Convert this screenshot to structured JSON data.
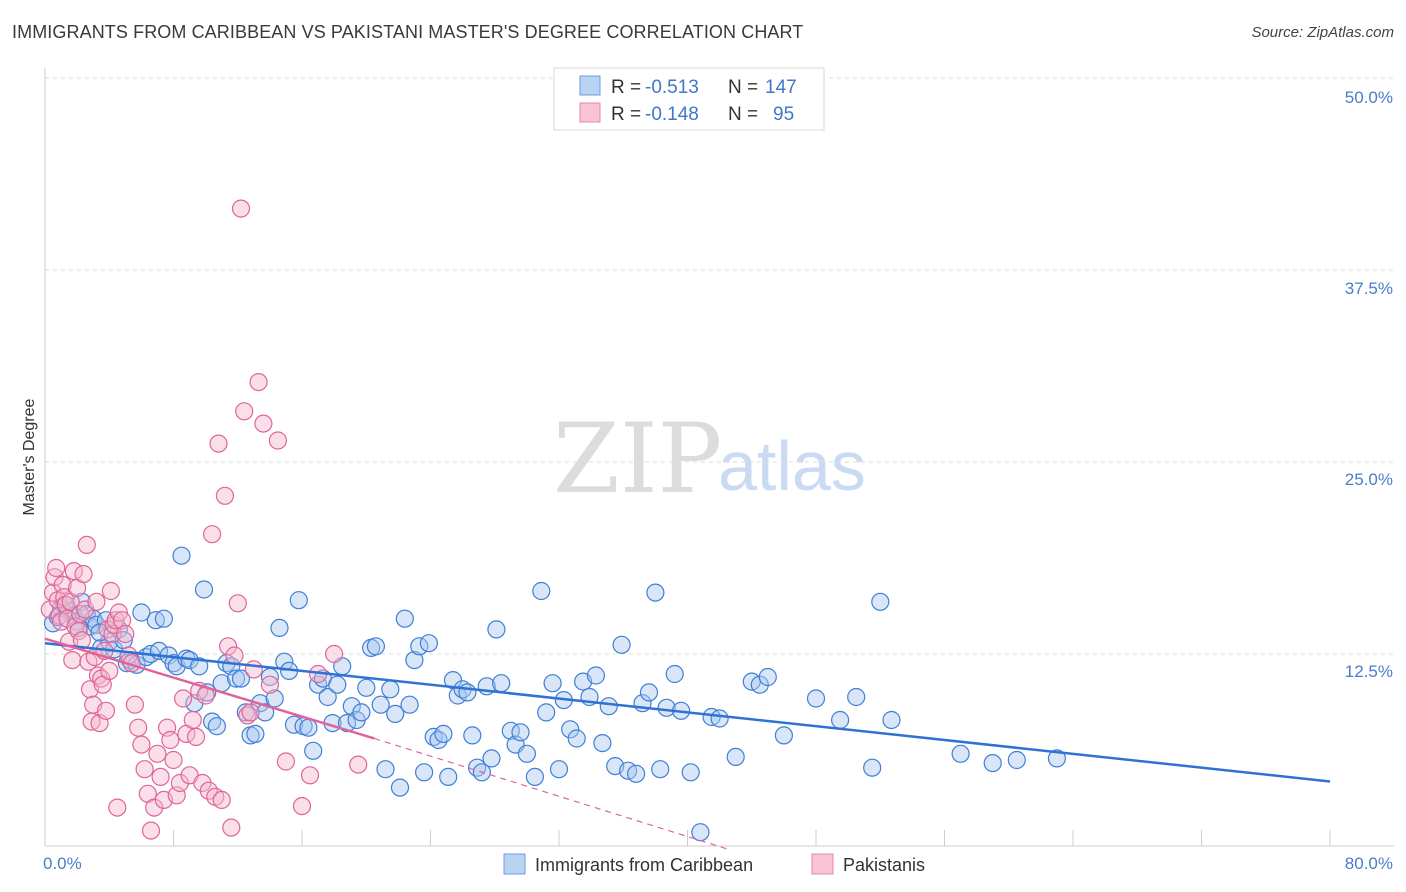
{
  "title": "IMMIGRANTS FROM CARIBBEAN VS PAKISTANI MASTER'S DEGREE CORRELATION CHART",
  "source": "Source: ZipAtlas.com",
  "watermark": {
    "zip": "ZIP",
    "atlas": "atlas"
  },
  "legend": {
    "rows": [
      {
        "r_label": "R =",
        "r_value": "-0.513",
        "n_label": "N =",
        "n_value": "147"
      },
      {
        "r_label": "R =",
        "r_value": "-0.148",
        "n_label": "N =",
        "n_value": "95"
      }
    ]
  },
  "bottom_legend": [
    "Immigrants from Caribbean",
    "Pakistanis"
  ],
  "colors": {
    "blue": "#3f7fd6",
    "blue_fill": "#a8c8f0",
    "pink": "#e0649a",
    "pink_fill": "#f5b8cd",
    "grid": "#dddddd",
    "tick": "#4a7cc7"
  },
  "chart_data": {
    "type": "scatter",
    "title": "IMMIGRANTS FROM CARIBBEAN VS PAKISTANI MASTER'S DEGREE CORRELATION CHART",
    "xlabel": "",
    "ylabel": "Master's Degree",
    "xlim": [
      0,
      80
    ],
    "ylim": [
      0,
      50
    ],
    "x_tick_labels": [
      "0.0%",
      "80.0%"
    ],
    "y_tick_labels": [
      "12.5%",
      "25.0%",
      "37.5%",
      "50.0%"
    ],
    "y_ticks": [
      12.5,
      25.0,
      37.5,
      50.0
    ],
    "series": [
      {
        "name": "Immigrants from Caribbean",
        "r": -0.513,
        "n": 147,
        "trend": {
          "x": [
            0,
            80
          ],
          "y": [
            13.2,
            4.2
          ]
        },
        "points": [
          [
            0.5,
            14.5
          ],
          [
            0.8,
            14.9
          ],
          [
            1.0,
            15.5
          ],
          [
            1.2,
            15.7
          ],
          [
            1.5,
            15.3
          ],
          [
            1.8,
            15.0
          ],
          [
            2.0,
            14.6
          ],
          [
            2.3,
            15.9
          ],
          [
            2.6,
            15.1
          ],
          [
            2.8,
            14.3
          ],
          [
            3.0,
            14.8
          ],
          [
            3.2,
            14.4
          ],
          [
            3.5,
            12.9
          ],
          [
            3.8,
            14.7
          ],
          [
            4.0,
            13.3
          ],
          [
            4.3,
            12.8
          ],
          [
            4.6,
            14.1
          ],
          [
            4.9,
            13.4
          ],
          [
            5.1,
            11.9
          ],
          [
            5.3,
            12.1
          ],
          [
            5.7,
            11.8
          ],
          [
            6.0,
            15.2
          ],
          [
            6.3,
            12.3
          ],
          [
            6.6,
            12.5
          ],
          [
            6.9,
            14.7
          ],
          [
            7.1,
            12.7
          ],
          [
            7.4,
            14.8
          ],
          [
            7.7,
            12.4
          ],
          [
            8.0,
            11.9
          ],
          [
            8.2,
            11.7
          ],
          [
            8.5,
            18.9
          ],
          [
            8.8,
            12.2
          ],
          [
            9.0,
            12.1
          ],
          [
            9.3,
            9.3
          ],
          [
            9.6,
            11.7
          ],
          [
            9.9,
            16.7
          ],
          [
            10.1,
            10.0
          ],
          [
            10.4,
            8.1
          ],
          [
            10.7,
            7.8
          ],
          [
            11.0,
            10.6
          ],
          [
            11.3,
            11.9
          ],
          [
            11.6,
            11.7
          ],
          [
            11.9,
            10.9
          ],
          [
            12.2,
            10.9
          ],
          [
            12.5,
            8.7
          ],
          [
            12.8,
            7.2
          ],
          [
            13.1,
            7.3
          ],
          [
            13.4,
            9.3
          ],
          [
            13.7,
            8.7
          ],
          [
            14.0,
            11.0
          ],
          [
            14.3,
            9.6
          ],
          [
            14.6,
            14.2
          ],
          [
            14.9,
            12.0
          ],
          [
            15.2,
            11.4
          ],
          [
            15.5,
            7.9
          ],
          [
            15.8,
            16.0
          ],
          [
            16.1,
            7.8
          ],
          [
            16.4,
            7.7
          ],
          [
            16.7,
            6.2
          ],
          [
            17.0,
            10.5
          ],
          [
            17.3,
            10.9
          ],
          [
            17.6,
            9.7
          ],
          [
            17.9,
            8.0
          ],
          [
            18.2,
            10.5
          ],
          [
            18.5,
            11.7
          ],
          [
            18.8,
            8.0
          ],
          [
            19.1,
            9.1
          ],
          [
            19.4,
            8.2
          ],
          [
            19.7,
            8.7
          ],
          [
            20.0,
            10.3
          ],
          [
            20.3,
            12.9
          ],
          [
            20.6,
            13.0
          ],
          [
            20.9,
            9.2
          ],
          [
            21.2,
            5.0
          ],
          [
            21.5,
            10.2
          ],
          [
            21.8,
            8.6
          ],
          [
            22.1,
            3.8
          ],
          [
            22.4,
            14.8
          ],
          [
            22.7,
            9.2
          ],
          [
            23.0,
            12.1
          ],
          [
            23.3,
            13.0
          ],
          [
            23.6,
            4.8
          ],
          [
            23.9,
            13.2
          ],
          [
            24.2,
            7.1
          ],
          [
            24.5,
            6.9
          ],
          [
            24.8,
            7.3
          ],
          [
            25.1,
            4.5
          ],
          [
            25.4,
            10.8
          ],
          [
            25.7,
            9.8
          ],
          [
            26.0,
            10.2
          ],
          [
            26.3,
            10.0
          ],
          [
            26.6,
            7.2
          ],
          [
            26.9,
            5.1
          ],
          [
            27.2,
            4.8
          ],
          [
            27.5,
            10.4
          ],
          [
            27.8,
            5.7
          ],
          [
            28.1,
            14.1
          ],
          [
            28.4,
            10.6
          ],
          [
            29.0,
            7.5
          ],
          [
            29.3,
            6.6
          ],
          [
            29.6,
            7.4
          ],
          [
            30.0,
            6.0
          ],
          [
            30.5,
            4.5
          ],
          [
            30.9,
            16.6
          ],
          [
            31.2,
            8.7
          ],
          [
            31.6,
            10.6
          ],
          [
            32.0,
            5.0
          ],
          [
            32.3,
            9.5
          ],
          [
            32.7,
            7.6
          ],
          [
            33.1,
            7.0
          ],
          [
            33.5,
            10.7
          ],
          [
            33.9,
            9.7
          ],
          [
            34.3,
            11.1
          ],
          [
            34.7,
            6.7
          ],
          [
            35.1,
            9.1
          ],
          [
            35.5,
            5.2
          ],
          [
            35.9,
            13.1
          ],
          [
            36.3,
            4.9
          ],
          [
            36.8,
            4.7
          ],
          [
            37.2,
            9.3
          ],
          [
            37.6,
            10.0
          ],
          [
            38.0,
            16.5
          ],
          [
            38.3,
            5.0
          ],
          [
            38.7,
            9.0
          ],
          [
            39.2,
            11.2
          ],
          [
            39.6,
            8.8
          ],
          [
            40.2,
            4.8
          ],
          [
            40.8,
            0.9
          ],
          [
            41.5,
            8.4
          ],
          [
            42.0,
            8.3
          ],
          [
            43.0,
            5.8
          ],
          [
            44.0,
            10.7
          ],
          [
            44.5,
            10.5
          ],
          [
            45.0,
            11.0
          ],
          [
            46.0,
            7.2
          ],
          [
            48.0,
            9.6
          ],
          [
            49.5,
            8.2
          ],
          [
            50.5,
            9.7
          ],
          [
            51.5,
            5.1
          ],
          [
            52.0,
            15.9
          ],
          [
            52.7,
            8.2
          ],
          [
            57.0,
            6.0
          ],
          [
            59.0,
            5.4
          ],
          [
            60.5,
            5.6
          ],
          [
            63.0,
            5.7
          ],
          [
            2.1,
            14.2
          ],
          [
            3.4,
            13.9
          ]
        ]
      },
      {
        "name": "Pakistanis",
        "r": -0.148,
        "n": 95,
        "trend": {
          "x": [
            0,
            20.5
          ],
          "y": [
            13.5,
            7.0
          ]
        },
        "trend_dashed": {
          "x": [
            20.5,
            42.5
          ],
          "y": [
            7.0,
            -0.2
          ]
        },
        "points": [
          [
            0.3,
            15.4
          ],
          [
            0.5,
            16.5
          ],
          [
            0.6,
            17.5
          ],
          [
            0.7,
            18.1
          ],
          [
            0.8,
            16.0
          ],
          [
            0.9,
            15.0
          ],
          [
            1.0,
            14.6
          ],
          [
            1.1,
            17.0
          ],
          [
            1.2,
            16.2
          ],
          [
            1.3,
            15.7
          ],
          [
            1.4,
            14.8
          ],
          [
            1.5,
            13.3
          ],
          [
            1.6,
            15.9
          ],
          [
            1.7,
            12.1
          ],
          [
            1.8,
            17.9
          ],
          [
            1.9,
            14.3
          ],
          [
            2.0,
            16.8
          ],
          [
            2.1,
            14.0
          ],
          [
            2.2,
            15.1
          ],
          [
            2.3,
            13.4
          ],
          [
            2.4,
            17.7
          ],
          [
            2.5,
            15.4
          ],
          [
            2.6,
            19.6
          ],
          [
            2.7,
            12.0
          ],
          [
            2.8,
            10.2
          ],
          [
            2.9,
            8.1
          ],
          [
            3.0,
            9.2
          ],
          [
            3.1,
            12.3
          ],
          [
            3.2,
            15.9
          ],
          [
            3.3,
            11.1
          ],
          [
            3.4,
            8.0
          ],
          [
            3.5,
            10.9
          ],
          [
            3.6,
            10.5
          ],
          [
            3.7,
            12.7
          ],
          [
            3.8,
            8.8
          ],
          [
            3.9,
            14.1
          ],
          [
            4.0,
            11.4
          ],
          [
            4.1,
            16.6
          ],
          [
            4.2,
            13.8
          ],
          [
            4.3,
            14.4
          ],
          [
            4.4,
            14.7
          ],
          [
            4.5,
            2.5
          ],
          [
            4.6,
            15.2
          ],
          [
            4.8,
            14.7
          ],
          [
            5.0,
            13.8
          ],
          [
            5.2,
            12.4
          ],
          [
            5.4,
            11.9
          ],
          [
            5.6,
            9.2
          ],
          [
            5.8,
            7.7
          ],
          [
            6.0,
            6.6
          ],
          [
            6.2,
            5.0
          ],
          [
            6.4,
            3.4
          ],
          [
            6.6,
            1.0
          ],
          [
            6.8,
            2.5
          ],
          [
            7.0,
            6.0
          ],
          [
            7.2,
            4.5
          ],
          [
            7.4,
            3.0
          ],
          [
            7.6,
            7.7
          ],
          [
            7.8,
            6.9
          ],
          [
            8.0,
            5.6
          ],
          [
            8.2,
            3.3
          ],
          [
            8.4,
            4.1
          ],
          [
            8.6,
            9.6
          ],
          [
            8.8,
            7.3
          ],
          [
            9.0,
            4.6
          ],
          [
            9.2,
            8.2
          ],
          [
            9.4,
            7.1
          ],
          [
            9.6,
            10.1
          ],
          [
            9.8,
            4.1
          ],
          [
            10.0,
            9.8
          ],
          [
            10.2,
            3.6
          ],
          [
            10.4,
            20.3
          ],
          [
            10.6,
            3.2
          ],
          [
            10.8,
            26.2
          ],
          [
            11.0,
            3.0
          ],
          [
            11.2,
            22.8
          ],
          [
            11.4,
            13.0
          ],
          [
            11.6,
            1.2
          ],
          [
            11.8,
            12.4
          ],
          [
            12.0,
            15.8
          ],
          [
            12.2,
            41.5
          ],
          [
            12.4,
            28.3
          ],
          [
            12.6,
            8.5
          ],
          [
            12.8,
            8.7
          ],
          [
            13.0,
            11.5
          ],
          [
            13.3,
            30.2
          ],
          [
            13.6,
            27.5
          ],
          [
            14.0,
            10.5
          ],
          [
            14.5,
            26.4
          ],
          [
            15.0,
            5.5
          ],
          [
            16.0,
            2.6
          ],
          [
            16.5,
            4.6
          ],
          [
            17.0,
            11.2
          ],
          [
            18.0,
            12.5
          ],
          [
            19.5,
            5.3
          ]
        ]
      }
    ]
  }
}
